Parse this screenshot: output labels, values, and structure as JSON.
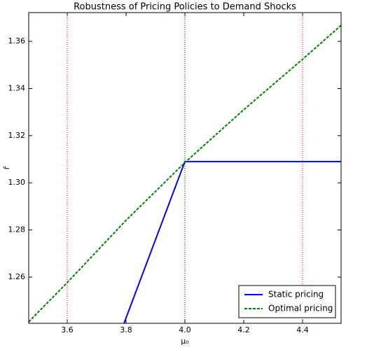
{
  "chart_data": {
    "type": "line",
    "title": "Robustness of Pricing Policies to Demand Shocks",
    "xlabel": "μ₀",
    "ylabel": "r̂",
    "xlim": [
      3.469,
      4.531
    ],
    "ylim": [
      1.2404,
      1.3722
    ],
    "xticks": [
      3.6,
      3.8,
      {
        "value": 4,
        "label": "4.0"
      },
      4.2,
      4.4
    ],
    "yticks": [
      1.26,
      1.28,
      {
        "value": 1.3,
        "label": "1.30"
      },
      1.32,
      1.34,
      1.36
    ],
    "vlines": [
      {
        "x": 3.6,
        "color": "#ff0000"
      },
      {
        "x": 4,
        "color": "#000000"
      },
      {
        "x": 4.4,
        "color": "#ff0000"
      }
    ],
    "series": [
      {
        "name": "Static pricing",
        "color": "#0000ff",
        "dash": "solid",
        "x": [
          3.793,
          4.0,
          4.531
        ],
        "values": [
          1.2404,
          1.309,
          1.309
        ]
      },
      {
        "name": "Optimal pricing",
        "color": "#008000",
        "dash": "dashed",
        "x": [
          3.469,
          3.6,
          3.8,
          4.0,
          4.2,
          4.4,
          4.531
        ],
        "values": [
          1.241,
          1.2577,
          1.2841,
          1.3086,
          1.331,
          1.3524,
          1.3668
        ]
      }
    ],
    "legend": "lower right"
  }
}
